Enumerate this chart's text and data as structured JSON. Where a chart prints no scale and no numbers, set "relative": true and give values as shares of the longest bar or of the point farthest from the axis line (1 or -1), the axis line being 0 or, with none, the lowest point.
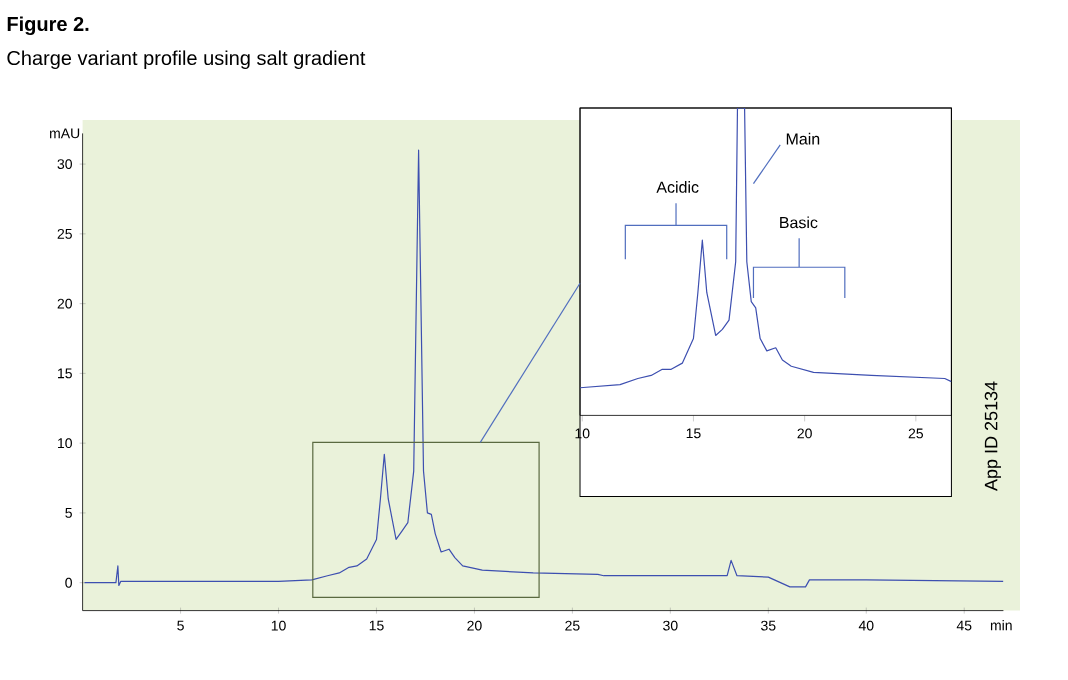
{
  "chart_data": [
    {
      "type": "line",
      "title": "Figure 2.",
      "subtitle": "Charge variant profile using salt gradient",
      "xlabel": "min",
      "ylabel": "mAU",
      "x": [
        0.1,
        1.7,
        1.8,
        1.85,
        1.95,
        5,
        10,
        11.7,
        12.5,
        13.1,
        13.6,
        14.0,
        14.5,
        15.0,
        15.2,
        15.4,
        15.6,
        16.0,
        16.3,
        16.6,
        16.9,
        17.15,
        17.4,
        17.6,
        17.8,
        18.0,
        18.3,
        18.7,
        19.0,
        19.4,
        20.4,
        23,
        26.3,
        26.6,
        30,
        32.9,
        33.1,
        33.4,
        35,
        36.1,
        36.3,
        36.9,
        37.1,
        40,
        47
      ],
      "values": [
        0,
        0,
        1.2,
        -0.2,
        0.1,
        0.1,
        0.1,
        0.2,
        0.5,
        0.7,
        1.1,
        1.2,
        1.7,
        3.1,
        6,
        9.2,
        6,
        3.1,
        3.7,
        4.3,
        8,
        31,
        8,
        5,
        4.9,
        3.5,
        2.2,
        2.4,
        1.8,
        1.2,
        0.9,
        0.7,
        0.6,
        0.5,
        0.5,
        0.5,
        1.6,
        0.5,
        0.4,
        -0.3,
        -0.3,
        -0.3,
        0.2,
        0.2,
        0.1
      ],
      "color": "#3d4fb0",
      "xlim": [
        0,
        47
      ],
      "ylim": [
        -2,
        32.2
      ],
      "xticks": [
        5,
        10,
        15,
        20,
        25,
        30,
        35,
        40,
        45
      ],
      "yticks": [
        0,
        5,
        10,
        15,
        20,
        25,
        30
      ],
      "annotations": [
        "App ID 25134"
      ]
    },
    {
      "type": "line",
      "relative": true,
      "x": [
        9.9,
        11.7,
        12.5,
        13.1,
        13.6,
        14.0,
        14.5,
        15.0,
        15.2,
        15.4,
        15.6,
        16.0,
        16.3,
        16.6,
        16.9,
        16.98,
        17.3,
        17.4,
        17.6,
        17.8,
        18.0,
        18.3,
        18.7,
        19.0,
        19.4,
        20.4,
        23,
        26.3,
        26.6
      ],
      "values": [
        0.09,
        0.1,
        0.12,
        0.13,
        0.15,
        0.15,
        0.17,
        0.25,
        0.4,
        0.57,
        0.4,
        0.26,
        0.28,
        0.31,
        0.5,
        1,
        1,
        0.5,
        0.37,
        0.35,
        0.25,
        0.21,
        0.22,
        0.18,
        0.16,
        0.14,
        0.13,
        0.12,
        0.11
      ],
      "color": "#3d4fb0",
      "xlim": [
        9.9,
        26.6
      ],
      "xticks": [
        10,
        15,
        20,
        25
      ],
      "tick_labels": "x",
      "annotations": [
        "Acidic",
        "Main",
        "Basic"
      ]
    }
  ]
}
